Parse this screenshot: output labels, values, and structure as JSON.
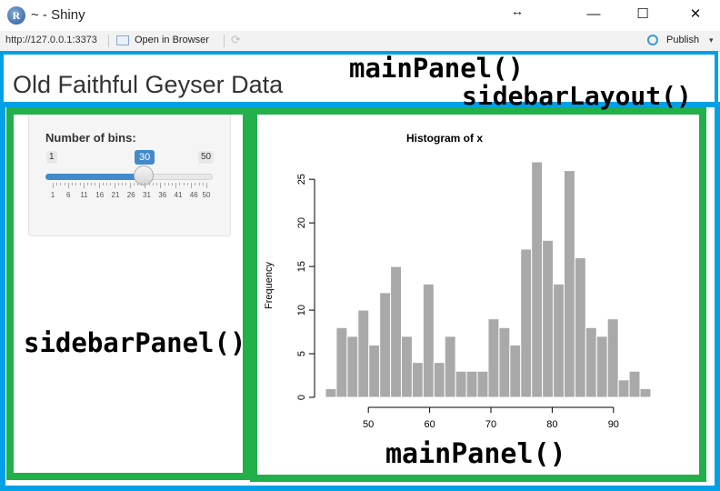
{
  "window": {
    "title": "~ - Shiny",
    "app_icon_letter": "R",
    "controls": {
      "minimize": "—",
      "maximize": "☐",
      "close": "✕"
    },
    "resize_cursor": "↔"
  },
  "toolbar": {
    "url": "http://127.0.0.1:3373",
    "open_in_browser": "Open in Browser",
    "refresh_icon": "refresh-icon",
    "publish": "Publish",
    "publish_caret": "▾",
    "publish_color": "#3a9ad9"
  },
  "app": {
    "title": "Old Faithful Geyser Data",
    "slider": {
      "label": "Number of bins:",
      "min": 1,
      "max": 50,
      "min_label": "1",
      "max_label": "50",
      "value": 30,
      "value_label": "30",
      "tick_labels": [
        "1",
        "6",
        "11",
        "16",
        "21",
        "26",
        "31",
        "36",
        "41",
        "46",
        "50"
      ],
      "accent_color": "#428bca"
    }
  },
  "annotations": {
    "main_panel_top": "mainPanel()",
    "sidebar_layout": "sidebarLayout()",
    "sidebar_panel": "sidebarPanel()",
    "main_panel_bottom": "mainPanel()",
    "blue": "#00a0e6",
    "green": "#22b04b"
  },
  "chart_data": {
    "type": "bar",
    "title": "Histogram of x",
    "xlabel": "",
    "ylabel": "Frequency",
    "bar_color": "#a9a9a9",
    "bin_start": 43,
    "bin_width": 1.77,
    "xlim": [
      43,
      97
    ],
    "xticks": [
      50,
      60,
      70,
      80,
      90
    ],
    "ylim": [
      0,
      27
    ],
    "yticks": [
      0,
      5,
      10,
      15,
      20,
      25
    ],
    "values": [
      1,
      8,
      7,
      10,
      6,
      12,
      15,
      7,
      4,
      13,
      4,
      7,
      3,
      3,
      3,
      9,
      8,
      6,
      17,
      27,
      18,
      13,
      26,
      16,
      8,
      7,
      9,
      2,
      3,
      1
    ]
  }
}
